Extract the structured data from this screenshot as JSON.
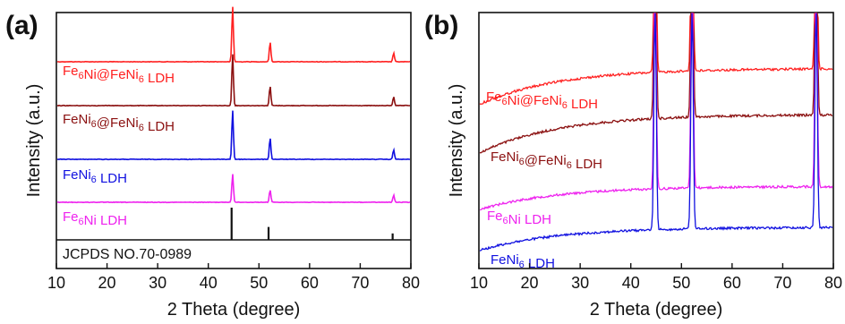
{
  "chart_data": [
    {
      "panel": "(a)",
      "type": "line",
      "xlabel": "2 Theta (degree)",
      "ylabel": "Intensity (a.u.)",
      "xlim": [
        10,
        80
      ],
      "xticks": [
        10,
        20,
        30,
        40,
        50,
        60,
        70,
        80
      ],
      "reference": {
        "label": "JCPDS NO.70-0989",
        "peaks": [
          {
            "x": 44.6,
            "intensity": 1.0
          },
          {
            "x": 51.9,
            "intensity": 0.4
          },
          {
            "x": 76.4,
            "intensity": 0.2
          }
        ]
      },
      "series": [
        {
          "name": "Fe6Ni@FeNi6 LDH",
          "label_main": "Fe",
          "label_sub": "6",
          "label_rest": "Ni@FeNi",
          "label_sub2": "6",
          "label_end": " LDH",
          "color": "#ff2020",
          "baseline": 0.0,
          "noise": 0.6,
          "peaks": [
            {
              "x": 44.8,
              "height": 62
            },
            {
              "x": 52.2,
              "height": 22
            },
            {
              "x": 76.6,
              "height": 10
            }
          ]
        },
        {
          "name": "FeNi6@FeNi6 LDH",
          "label_main": "FeNi",
          "label_sub": "6",
          "label_rest": "@FeNi",
          "label_sub2": "6",
          "label_end": " LDH",
          "color": "#8b1010",
          "baseline": 0.0,
          "noise": 0.6,
          "peaks": [
            {
              "x": 44.8,
              "height": 58
            },
            {
              "x": 52.2,
              "height": 22
            },
            {
              "x": 76.6,
              "height": 10
            }
          ]
        },
        {
          "name": "FeNi6 LDH",
          "label_main": "FeNi",
          "label_sub": "6",
          "label_rest": " LDH",
          "label_sub2": "",
          "label_end": "",
          "color": "#1010e0",
          "baseline": 0.0,
          "noise": 0.6,
          "peaks": [
            {
              "x": 44.8,
              "height": 55
            },
            {
              "x": 52.2,
              "height": 24
            },
            {
              "x": 76.6,
              "height": 11
            }
          ]
        },
        {
          "name": "Fe6Ni LDH",
          "label_main": "Fe",
          "label_sub": "6",
          "label_rest": "Ni LDH",
          "label_sub2": "",
          "label_end": "",
          "color": "#ee22ee",
          "baseline": 0.0,
          "noise": 0.6,
          "peaks": [
            {
              "x": 44.8,
              "height": 32
            },
            {
              "x": 52.2,
              "height": 14
            },
            {
              "x": 76.6,
              "height": 8
            }
          ]
        }
      ]
    },
    {
      "panel": "(b)",
      "type": "line",
      "xlabel": "2 Theta (degree)",
      "ylabel": "Intensity (a.u.)",
      "xlim": [
        10,
        80
      ],
      "xticks": [
        10,
        20,
        30,
        40,
        50,
        60,
        70,
        80
      ],
      "series": [
        {
          "name": "Fe6Ni@FeNi6 LDH",
          "label_main": "Fe",
          "label_sub": "6",
          "label_rest": "Ni@FeNi",
          "label_sub2": "6",
          "label_end": " LDH",
          "color": "#ff2020",
          "start": 0.36,
          "end": 0.22,
          "noise": 1.6,
          "peak_height": 0.9
        },
        {
          "name": "FeNi6@FeNi6 LDH",
          "label_main": "FeNi",
          "label_sub": "6",
          "label_rest": "@FeNi",
          "label_sub2": "6",
          "label_end": " LDH",
          "color": "#8b1010",
          "start": 0.55,
          "end": 0.4,
          "noise": 1.6,
          "peak_height": 0.9
        },
        {
          "name": "Fe6Ni LDH",
          "label_main": "Fe",
          "label_sub": "6",
          "label_rest": "Ni LDH",
          "label_sub2": "",
          "label_end": "",
          "color": "#ee22ee",
          "start": 0.77,
          "end": 0.68,
          "noise": 1.6,
          "peak_height": 0.9
        },
        {
          "name": "FeNi6 LDH",
          "label_main": "FeNi",
          "label_sub": "6",
          "label_rest": " LDH",
          "label_sub2": "",
          "label_end": "",
          "color": "#1010e0",
          "start": 0.93,
          "end": 0.84,
          "noise": 1.6,
          "peak_height": 0.9
        }
      ],
      "peaks": [
        44.8,
        52.1,
        76.6
      ]
    }
  ]
}
